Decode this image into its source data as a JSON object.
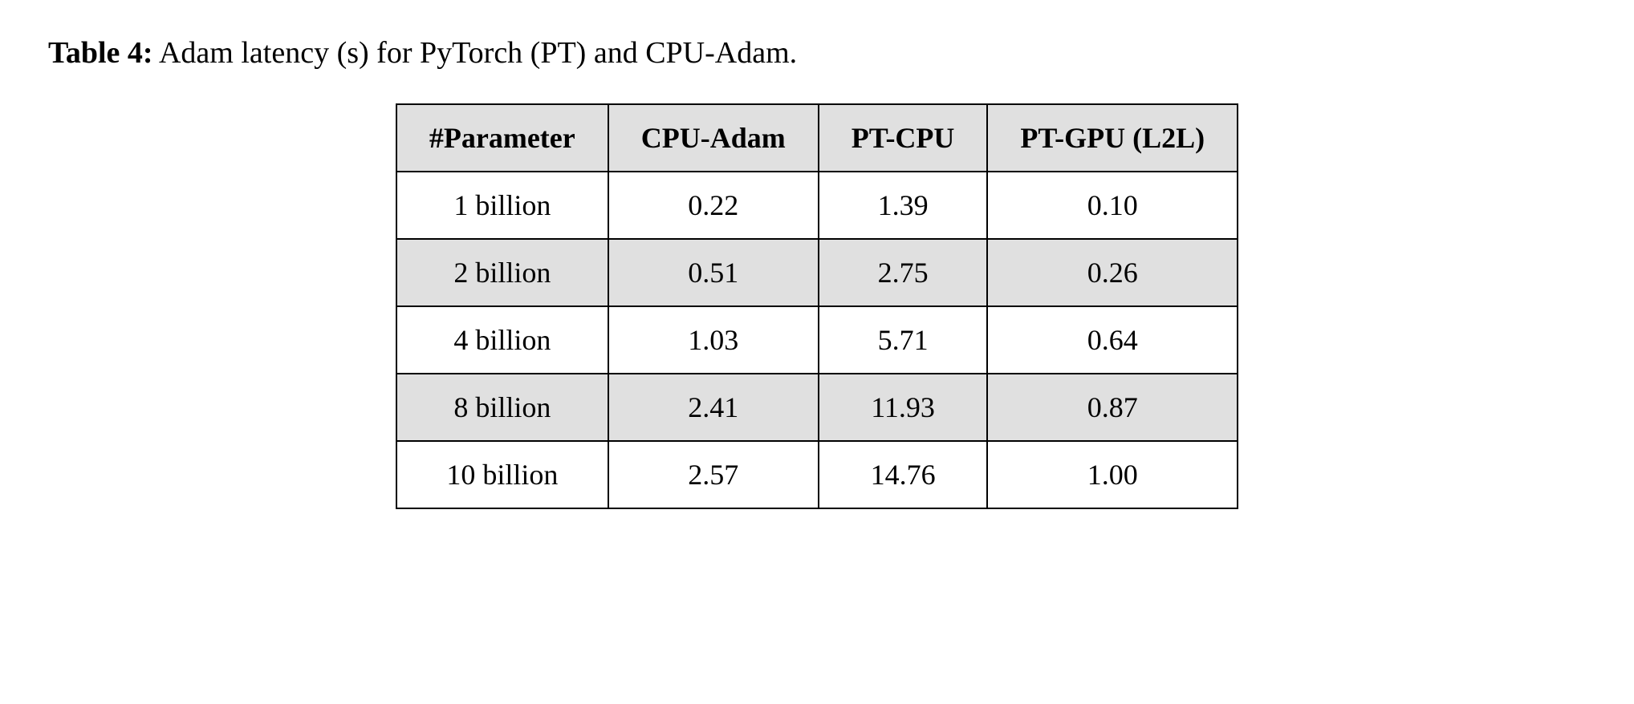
{
  "caption": {
    "label": "Table 4:",
    "text": "Adam latency (s) for PyTorch (PT) and CPU-Adam."
  },
  "table": {
    "type": "table",
    "columns": [
      "#Parameter",
      "CPU-Adam",
      "PT-CPU",
      "PT-GPU (L2L)"
    ],
    "rows": [
      [
        "1 billion",
        "0.22",
        "1.39",
        "0.10"
      ],
      [
        "2 billion",
        "0.51",
        "2.75",
        "0.26"
      ],
      [
        "4 billion",
        "1.03",
        "5.71",
        "0.64"
      ],
      [
        "8 billion",
        "2.41",
        "11.93",
        "0.87"
      ],
      [
        "10 billion",
        "2.57",
        "14.76",
        "1.00"
      ]
    ],
    "header_bg_color": "#e0e0e0",
    "row_shaded_bg_color": "#e0e0e0",
    "row_unshaded_bg_color": "#ffffff",
    "border_color": "#000000",
    "border_width": 2,
    "font_size": 36,
    "header_font_weight": "700",
    "caption_font_size": 38,
    "column_padding": "20px 40px",
    "row_stripe_pattern": [
      "unshaded",
      "shaded",
      "unshaded",
      "shaded",
      "unshaded"
    ]
  }
}
